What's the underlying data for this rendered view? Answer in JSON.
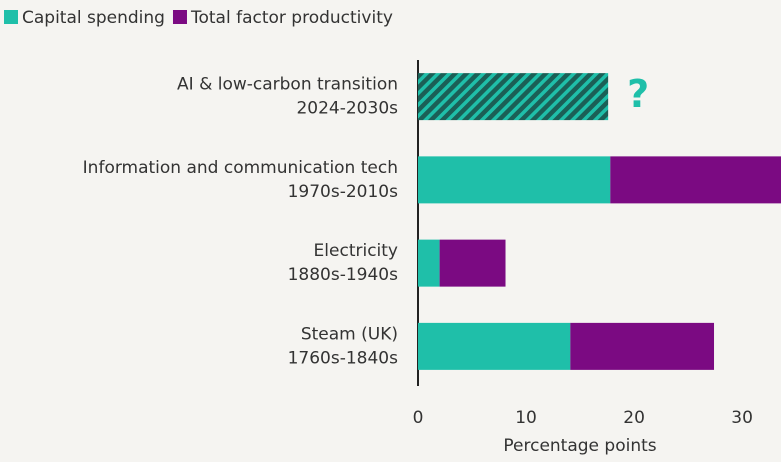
{
  "chart_data": {
    "type": "stacked-barh",
    "categories": [
      "AI & low-carbon transition",
      "Information and communication tech",
      "Electricity",
      "Steam (UK)"
    ],
    "category_periods": [
      "2024-2030s",
      "1970s-2010s",
      "1880s-1940s",
      "1760s-1840s"
    ],
    "series": [
      {
        "name": "Capital spending",
        "color": "#1fbfa9",
        "values": [
          17.6,
          17.8,
          2.0,
          14.1
        ],
        "hatch": [
          true,
          false,
          false,
          false
        ]
      },
      {
        "name": "Total factor productivity",
        "color": "#7b0a82",
        "values": [
          null,
          16.2,
          6.1,
          13.3
        ]
      }
    ],
    "annotation": "?",
    "xlabel": "Percentage points",
    "xlim": [
      0,
      33.6
    ],
    "xticks": [
      0,
      10,
      20,
      30
    ],
    "grid": false,
    "legend": "top-left"
  }
}
